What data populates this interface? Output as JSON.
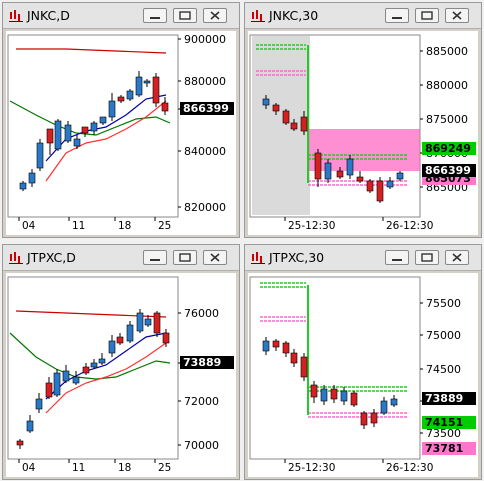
{
  "colors": {
    "up": "#2a78c8",
    "down": "#d42020",
    "ma_long": "#cc0000",
    "ma_mid": "#007700",
    "ma_short": "#ff3030",
    "band_fill": "#ff60c0",
    "green_line": "#22cc22",
    "pink_line": "#ff66cc",
    "price_box": "#000000"
  },
  "windows": [
    {
      "title": "JNKC,D",
      "chart_data": {
        "type": "candlestick",
        "title": "JNKC,D",
        "y_ticks": [
          "900000",
          "880000",
          "860000",
          "840000",
          "820000"
        ],
        "ylim": [
          812000,
          908000
        ],
        "x_ticks": [
          "04",
          "11",
          "18",
          "25"
        ],
        "last_price": "866399",
        "badges": []
      }
    },
    {
      "title": "JNKC,30",
      "chart_data": {
        "type": "candlestick",
        "title": "JNKC,30",
        "y_ticks": [
          "885000",
          "880000",
          "875000",
          "870000",
          "865000"
        ],
        "ylim": [
          861000,
          888500
        ],
        "x_ticks": [
          "25-12:30",
          "26-12:30"
        ],
        "last_price": "866399",
        "badges": [
          {
            "label": "869249",
            "value": 869249,
            "color": "#00cc00"
          },
          {
            "label": "865073",
            "value": 865073,
            "color": "#ff77cc"
          }
        ]
      }
    },
    {
      "title": "JTPXC,D",
      "chart_data": {
        "type": "candlestick",
        "title": "JTPXC,D",
        "y_ticks": [
          "76000",
          "74000",
          "72000",
          "70000"
        ],
        "ylim": [
          68400,
          77600
        ],
        "x_ticks": [
          "04",
          "11",
          "18",
          "25"
        ],
        "last_price": "73889",
        "badges": []
      }
    },
    {
      "title": "JTPXC,30",
      "chart_data": {
        "type": "candlestick",
        "title": "JTPXC,30",
        "y_ticks": [
          "75500",
          "75000",
          "74500",
          "74000",
          "73500"
        ],
        "ylim": [
          73250,
          75850
        ],
        "x_ticks": [
          "25-12:30",
          "26-12:30"
        ],
        "last_price": "73889",
        "badges": [
          {
            "label": "74151",
            "value": 74151,
            "color": "#00cc00"
          },
          {
            "label": "73781",
            "value": 73781,
            "color": "#ff77cc"
          }
        ]
      }
    }
  ]
}
